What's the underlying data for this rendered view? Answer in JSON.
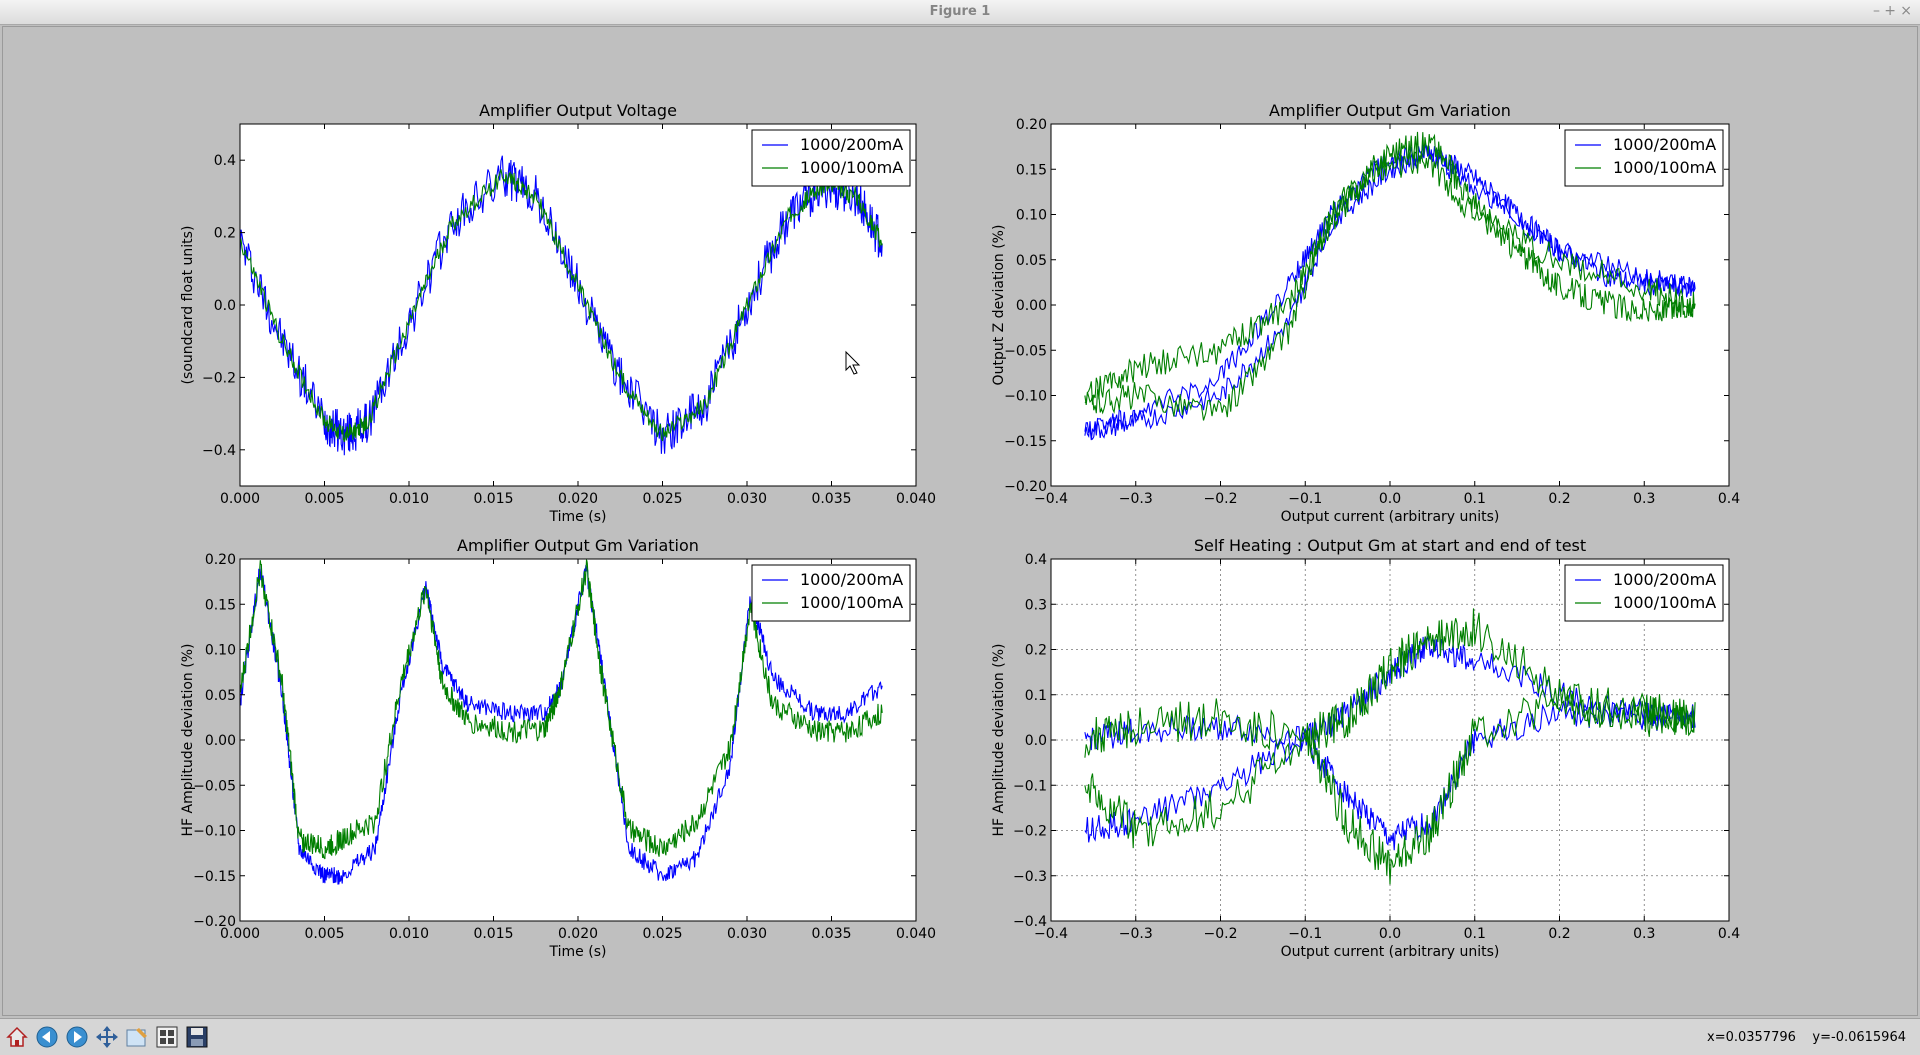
{
  "window": {
    "title": "Figure 1",
    "controls": [
      "–",
      "+",
      "×"
    ]
  },
  "status": {
    "x_label": "x=0.0357796",
    "y_label": "y=-0.0615964"
  },
  "toolbar": {
    "buttons": [
      "home-icon",
      "back-icon",
      "forward-icon",
      "pan-icon",
      "zoom-icon",
      "configure-subplots-icon",
      "save-icon"
    ]
  },
  "colors": {
    "series_blue": "#0000ff",
    "series_green": "#007f00",
    "figure_bg": "#bfbfbf"
  },
  "chart_data": [
    {
      "type": "line",
      "title": "Amplifier Output Voltage",
      "xlabel": "Time (s)",
      "ylabel": "(soundcard float units)",
      "xlim": [
        0,
        0.04
      ],
      "ylim": [
        -0.5,
        0.5
      ],
      "xticks": [
        "0.000",
        "0.005",
        "0.010",
        "0.015",
        "0.020",
        "0.025",
        "0.030",
        "0.035",
        "0.040"
      ],
      "yticks": [
        "−0.4",
        "−0.2",
        "0.0",
        "0.2",
        "0.4"
      ],
      "xtick_values": [
        0,
        0.005,
        0.01,
        0.015,
        0.02,
        0.025,
        0.03,
        0.035,
        0.04
      ],
      "ytick_values": [
        -0.4,
        -0.2,
        0.0,
        0.2,
        0.4
      ],
      "grid": false,
      "legend": "top-right",
      "series": [
        {
          "name": "1000/200mA",
          "color": "#0000ff",
          "x": [
            0.0,
            0.0025,
            0.005,
            0.0062,
            0.0075,
            0.01,
            0.0125,
            0.0156,
            0.0175,
            0.02,
            0.0225,
            0.025,
            0.0275,
            0.03,
            0.0325,
            0.0345,
            0.0365,
            0.038
          ],
          "y": [
            0.18,
            -0.1,
            -0.32,
            -0.36,
            -0.33,
            -0.05,
            0.22,
            0.36,
            0.3,
            0.05,
            -0.2,
            -0.36,
            -0.28,
            0.0,
            0.25,
            0.33,
            0.3,
            0.17
          ],
          "ripple": 0.06
        },
        {
          "name": "1000/100mA",
          "color": "#007f00",
          "x": [
            0.0,
            0.0025,
            0.005,
            0.0062,
            0.0075,
            0.01,
            0.0125,
            0.0156,
            0.0175,
            0.02,
            0.0225,
            0.025,
            0.0275,
            0.03,
            0.0325,
            0.0345,
            0.0365,
            0.038
          ],
          "y": [
            0.18,
            -0.1,
            -0.32,
            -0.36,
            -0.33,
            -0.05,
            0.22,
            0.36,
            0.3,
            0.05,
            -0.2,
            -0.36,
            -0.28,
            0.0,
            0.25,
            0.33,
            0.3,
            0.17
          ],
          "ripple": 0.025
        }
      ]
    },
    {
      "type": "line",
      "title": "Amplifier Output Gm Variation",
      "xlabel": "Output current (arbitrary units)",
      "ylabel": "Output Z deviation (%)",
      "xlim": [
        -0.4,
        0.4
      ],
      "ylim": [
        -0.2,
        0.2
      ],
      "xticks": [
        "−0.4",
        "−0.3",
        "−0.2",
        "−0.1",
        "0.0",
        "0.1",
        "0.2",
        "0.3",
        "0.4"
      ],
      "yticks": [
        "−0.20",
        "−0.15",
        "−0.10",
        "−0.05",
        "0.00",
        "0.05",
        "0.10",
        "0.15",
        "0.20"
      ],
      "xtick_values": [
        -0.4,
        -0.3,
        -0.2,
        -0.1,
        0.0,
        0.1,
        0.2,
        0.3,
        0.4
      ],
      "ytick_values": [
        -0.2,
        -0.15,
        -0.1,
        -0.05,
        0.0,
        0.05,
        0.1,
        0.15,
        0.2
      ],
      "grid": false,
      "legend": "top-right",
      "series": [
        {
          "name": "1000/200mA",
          "color": "#0000ff",
          "x": [
            -0.36,
            -0.3,
            -0.2,
            -0.12,
            -0.07,
            0.0,
            0.05,
            0.1,
            0.15,
            0.2,
            0.26,
            0.32,
            0.36,
            0.3,
            0.2,
            0.1,
            0.04,
            -0.02,
            -0.07,
            -0.12,
            -0.2,
            -0.3,
            -0.36
          ],
          "y": [
            -0.14,
            -0.13,
            -0.1,
            -0.02,
            0.09,
            0.15,
            0.17,
            0.14,
            0.1,
            0.06,
            0.03,
            0.02,
            0.02,
            0.03,
            0.06,
            0.13,
            0.17,
            0.15,
            0.1,
            0.02,
            -0.08,
            -0.12,
            -0.14
          ],
          "ripple": 0.012
        },
        {
          "name": "1000/100mA",
          "color": "#007f00",
          "x": [
            -0.36,
            -0.3,
            -0.2,
            -0.12,
            -0.07,
            0.0,
            0.05,
            0.1,
            0.15,
            0.2,
            0.26,
            0.32,
            0.36,
            0.3,
            0.2,
            0.1,
            0.04,
            -0.02,
            -0.07,
            -0.12,
            -0.2,
            -0.3,
            -0.36
          ],
          "y": [
            -0.11,
            -0.1,
            -0.12,
            -0.03,
            0.1,
            0.17,
            0.18,
            0.11,
            0.06,
            0.02,
            0.0,
            -0.01,
            0.0,
            0.02,
            0.05,
            0.1,
            0.16,
            0.15,
            0.09,
            0.0,
            -0.05,
            -0.07,
            -0.1
          ],
          "ripple": 0.015
        }
      ]
    },
    {
      "type": "line",
      "title": "Amplifier Output Gm Variation",
      "xlabel": "Time (s)",
      "ylabel": "HF Amplitude deviation (%)",
      "xlim": [
        0,
        0.04
      ],
      "ylim": [
        -0.2,
        0.2
      ],
      "xticks": [
        "0.000",
        "0.005",
        "0.010",
        "0.015",
        "0.020",
        "0.025",
        "0.030",
        "0.035",
        "0.040"
      ],
      "yticks": [
        "−0.20",
        "−0.15",
        "−0.10",
        "−0.05",
        "0.00",
        "0.05",
        "0.10",
        "0.15",
        "0.20"
      ],
      "xtick_values": [
        0,
        0.005,
        0.01,
        0.015,
        0.02,
        0.025,
        0.03,
        0.035,
        0.04
      ],
      "ytick_values": [
        -0.2,
        -0.15,
        -0.1,
        -0.05,
        0.0,
        0.05,
        0.1,
        0.15,
        0.2
      ],
      "grid": false,
      "legend": "top-right",
      "series": [
        {
          "name": "1000/200mA",
          "color": "#0000ff",
          "x": [
            0.0,
            0.0012,
            0.0025,
            0.0035,
            0.005,
            0.006,
            0.008,
            0.0095,
            0.011,
            0.012,
            0.0135,
            0.016,
            0.018,
            0.019,
            0.0205,
            0.0215,
            0.023,
            0.025,
            0.027,
            0.029,
            0.0302,
            0.0315,
            0.034,
            0.036,
            0.038
          ],
          "y": [
            0.04,
            0.19,
            0.05,
            -0.12,
            -0.15,
            -0.15,
            -0.12,
            0.05,
            0.17,
            0.08,
            0.04,
            0.03,
            0.03,
            0.06,
            0.19,
            0.07,
            -0.12,
            -0.15,
            -0.13,
            -0.03,
            0.16,
            0.07,
            0.03,
            0.03,
            0.06
          ],
          "ripple": 0.01
        },
        {
          "name": "1000/100mA",
          "color": "#007f00",
          "x": [
            0.0,
            0.0012,
            0.0025,
            0.0035,
            0.005,
            0.006,
            0.008,
            0.0095,
            0.011,
            0.012,
            0.0135,
            0.016,
            0.018,
            0.019,
            0.0205,
            0.0215,
            0.023,
            0.025,
            0.027,
            0.029,
            0.0302,
            0.0315,
            0.034,
            0.036,
            0.038
          ],
          "y": [
            0.05,
            0.19,
            0.06,
            -0.11,
            -0.12,
            -0.11,
            -0.09,
            0.06,
            0.17,
            0.06,
            0.02,
            0.01,
            0.01,
            0.06,
            0.19,
            0.06,
            -0.1,
            -0.12,
            -0.09,
            -0.01,
            0.15,
            0.04,
            0.01,
            0.01,
            0.03
          ],
          "ripple": 0.013
        }
      ]
    },
    {
      "type": "line",
      "title": "Self Heating : Output Gm at start and end of test",
      "xlabel": "Output current (arbitrary units)",
      "ylabel": "HF Amplitude deviation (%)",
      "xlim": [
        -0.4,
        0.4
      ],
      "ylim": [
        -0.4,
        0.4
      ],
      "xticks": [
        "−0.4",
        "−0.3",
        "−0.2",
        "−0.1",
        "0.0",
        "0.1",
        "0.2",
        "0.3",
        "0.4"
      ],
      "yticks": [
        "−0.4",
        "−0.3",
        "−0.2",
        "−0.1",
        "0.0",
        "0.1",
        "0.2",
        "0.3",
        "0.4"
      ],
      "xtick_values": [
        -0.4,
        -0.3,
        -0.2,
        -0.1,
        0.0,
        0.1,
        0.2,
        0.3,
        0.4
      ],
      "ytick_values": [
        -0.4,
        -0.3,
        -0.2,
        -0.1,
        0.0,
        0.1,
        0.2,
        0.3,
        0.4
      ],
      "grid": true,
      "legend": "top-right",
      "series": [
        {
          "name": "1000/200mA",
          "color": "#0000ff",
          "x": [
            -0.36,
            -0.3,
            -0.2,
            -0.1,
            -0.05,
            0.0,
            0.05,
            0.1,
            0.2,
            0.3,
            0.36,
            0.3,
            0.2,
            0.1,
            0.04,
            0.0,
            -0.05,
            -0.1,
            -0.2,
            -0.3,
            -0.36
          ],
          "y": [
            0.0,
            0.02,
            0.03,
            0.0,
            -0.12,
            -0.22,
            -0.18,
            0.0,
            0.06,
            0.05,
            0.05,
            0.06,
            0.1,
            0.18,
            0.2,
            0.15,
            0.06,
            0.0,
            -0.1,
            -0.18,
            -0.2
          ],
          "ripple": 0.03
        },
        {
          "name": "1000/100mA",
          "color": "#007f00",
          "x": [
            -0.36,
            -0.3,
            -0.2,
            -0.1,
            -0.05,
            0.0,
            0.05,
            0.1,
            0.2,
            0.3,
            0.36,
            0.3,
            0.2,
            0.1,
            0.04,
            0.0,
            -0.05,
            -0.1,
            -0.2,
            -0.3,
            -0.36
          ],
          "y": [
            0.0,
            0.03,
            0.05,
            0.0,
            -0.18,
            -0.28,
            -0.2,
            0.02,
            0.08,
            0.06,
            0.05,
            0.05,
            0.1,
            0.25,
            0.22,
            0.16,
            0.05,
            0.0,
            -0.15,
            -0.2,
            -0.1
          ],
          "ripple": 0.045
        }
      ]
    }
  ]
}
